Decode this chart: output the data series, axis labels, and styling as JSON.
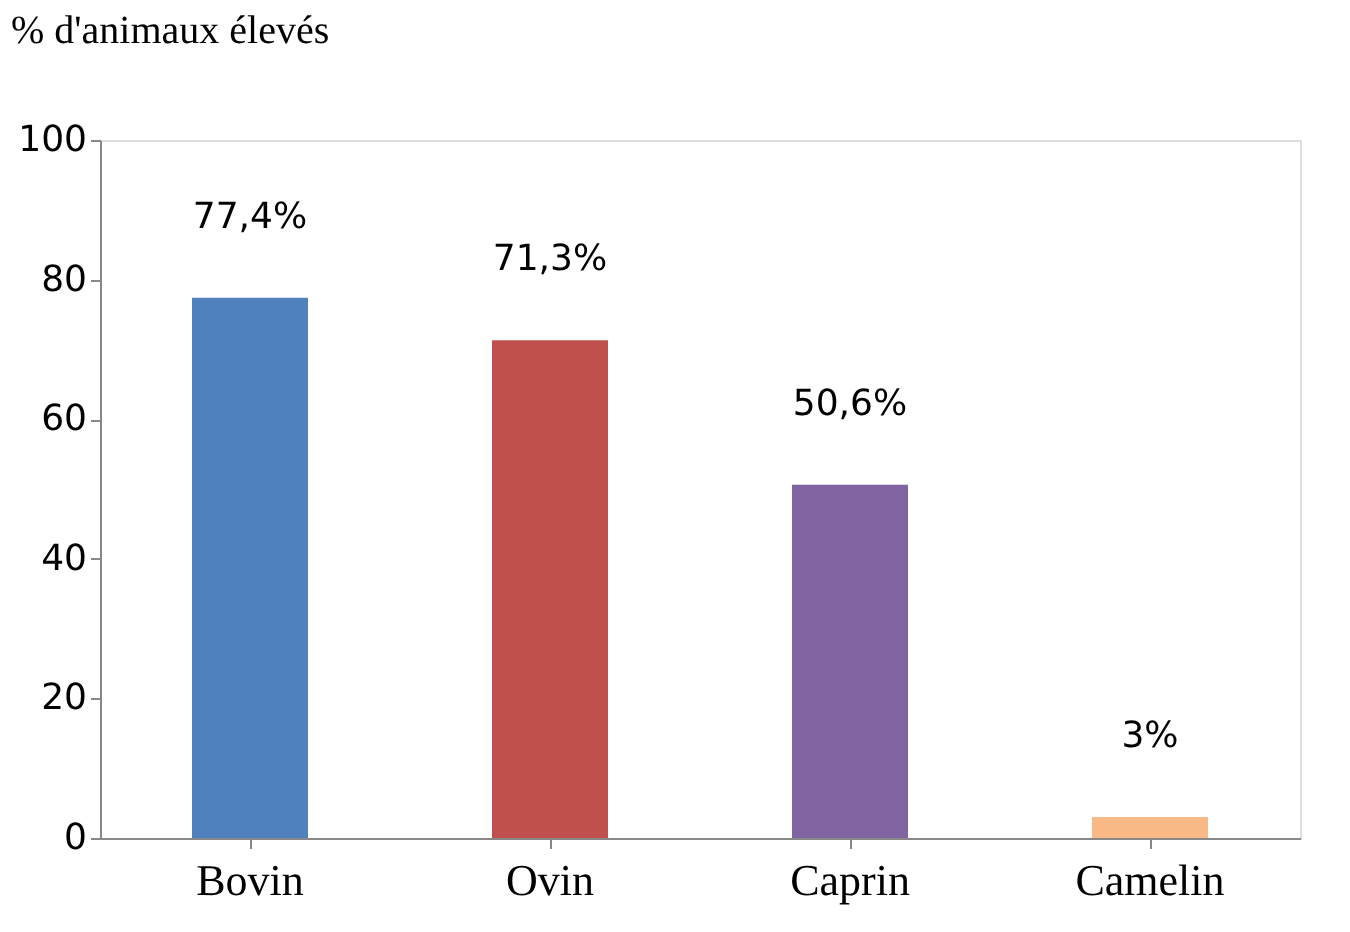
{
  "chart_data": {
    "type": "bar",
    "ylabel": "% d'animaux élevés",
    "categories": [
      "Bovin",
      "Ovin",
      "Caprin",
      "Camelin"
    ],
    "values": [
      77.4,
      71.3,
      50.6,
      3
    ],
    "colors": [
      "#4f81bd",
      "#c0504d",
      "#8064a2",
      "#f9b987"
    ],
    "value_labels": [
      "77,4%",
      "71,3%",
      "50,6%",
      "3%"
    ],
    "ylim": [
      0,
      100
    ],
    "yticks": [
      0,
      20,
      40,
      60,
      80,
      100
    ],
    "grid": false,
    "legend": false
  }
}
